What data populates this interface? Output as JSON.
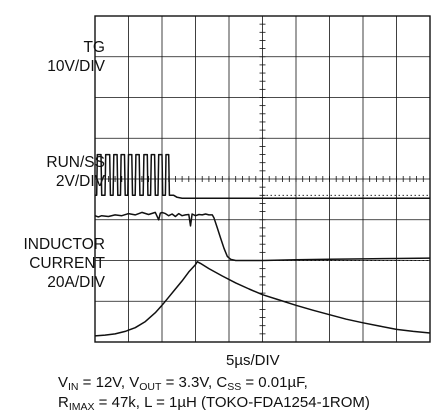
{
  "chart_data": {
    "type": "line",
    "title": "",
    "xlabel": "5µs/DIV",
    "grid": true,
    "divisions": {
      "x": 10,
      "y": 8
    },
    "channels": [
      {
        "name": "TG",
        "scale": "10V/DIV",
        "label_lines": [
          "TG",
          "10V/DIV"
        ],
        "ground_div": 3.6,
        "description": "gate switching pulses for about the first 2 divisions, then low",
        "points": [
          [
            0,
            3.6
          ],
          [
            0.05,
            3.6
          ],
          [
            0.07,
            4.6
          ],
          [
            0.18,
            4.6
          ],
          [
            0.2,
            3.6
          ],
          [
            0.3,
            3.6
          ],
          [
            0.32,
            4.6
          ],
          [
            0.44,
            4.6
          ],
          [
            0.46,
            3.6
          ],
          [
            0.54,
            3.6
          ],
          [
            0.56,
            4.6
          ],
          [
            0.66,
            4.6
          ],
          [
            0.68,
            3.6
          ],
          [
            0.76,
            3.6
          ],
          [
            0.78,
            4.6
          ],
          [
            0.88,
            4.6
          ],
          [
            0.9,
            3.6
          ],
          [
            0.98,
            3.6
          ],
          [
            1.0,
            4.6
          ],
          [
            1.1,
            4.6
          ],
          [
            1.12,
            3.6
          ],
          [
            1.2,
            3.6
          ],
          [
            1.22,
            4.6
          ],
          [
            1.32,
            4.6
          ],
          [
            1.34,
            3.6
          ],
          [
            1.44,
            3.6
          ],
          [
            1.46,
            4.6
          ],
          [
            1.56,
            4.6
          ],
          [
            1.58,
            3.6
          ],
          [
            1.66,
            3.6
          ],
          [
            1.68,
            4.6
          ],
          [
            1.78,
            4.6
          ],
          [
            1.8,
            3.6
          ],
          [
            1.88,
            3.6
          ],
          [
            1.9,
            4.6
          ],
          [
            2.0,
            4.6
          ],
          [
            2.02,
            3.6
          ],
          [
            2.1,
            3.6
          ],
          [
            2.12,
            4.6
          ],
          [
            2.2,
            4.6
          ],
          [
            2.22,
            3.6
          ],
          [
            2.35,
            3.6
          ],
          [
            2.45,
            3.55
          ],
          [
            2.6,
            3.53
          ],
          [
            10,
            3.53
          ]
        ]
      },
      {
        "name": "RUN/SS",
        "scale": "2V/DIV",
        "label_lines": [
          "RUN/SS",
          "2V/DIV"
        ],
        "ground_div": 2.0,
        "description": "held high then pulled low at about 4.5 divisions",
        "points": [
          [
            0,
            3.1
          ],
          [
            0.1,
            3.07
          ],
          [
            0.2,
            3.1
          ],
          [
            0.4,
            3.08
          ],
          [
            0.6,
            3.12
          ],
          [
            0.8,
            3.1
          ],
          [
            1.0,
            3.15
          ],
          [
            1.2,
            3.12
          ],
          [
            1.4,
            3.18
          ],
          [
            1.6,
            3.13
          ],
          [
            1.8,
            3.18
          ],
          [
            1.9,
            3.0
          ],
          [
            1.95,
            3.16
          ],
          [
            2.0,
            3.18
          ],
          [
            2.1,
            3.15
          ],
          [
            2.2,
            3.1
          ],
          [
            2.3,
            3.14
          ],
          [
            2.4,
            3.08
          ],
          [
            2.5,
            3.15
          ],
          [
            2.6,
            3.1
          ],
          [
            2.7,
            3.12
          ],
          [
            2.8,
            3.13
          ],
          [
            2.85,
            2.85
          ],
          [
            2.9,
            3.14
          ],
          [
            3.0,
            3.1
          ],
          [
            3.1,
            3.13
          ],
          [
            3.2,
            3.12
          ],
          [
            3.3,
            3.14
          ],
          [
            3.4,
            3.12
          ],
          [
            3.5,
            3.12
          ],
          [
            3.55,
            3.05
          ],
          [
            3.65,
            2.8
          ],
          [
            3.75,
            2.55
          ],
          [
            3.85,
            2.3
          ],
          [
            3.95,
            2.1
          ],
          [
            4.05,
            2.03
          ],
          [
            4.2,
            2.0
          ],
          [
            5,
            2.0
          ],
          [
            6,
            2.02
          ],
          [
            7,
            2.03
          ],
          [
            8,
            2.04
          ],
          [
            9,
            2.05
          ],
          [
            10,
            2.06
          ]
        ]
      },
      {
        "name": "INDUCTOR CURRENT",
        "scale": "20A/DIV",
        "label_lines": [
          "INDUCTOR",
          "CURRENT",
          "20A/DIV"
        ],
        "ground_div": 0,
        "description": "ramps up to a peak near 3.1 divisions, then decays",
        "points": [
          [
            0,
            0.15
          ],
          [
            0.3,
            0.17
          ],
          [
            0.6,
            0.2
          ],
          [
            0.9,
            0.26
          ],
          [
            1.2,
            0.35
          ],
          [
            1.5,
            0.5
          ],
          [
            1.8,
            0.72
          ],
          [
            2.0,
            0.9
          ],
          [
            2.2,
            1.1
          ],
          [
            2.4,
            1.3
          ],
          [
            2.6,
            1.5
          ],
          [
            2.8,
            1.72
          ],
          [
            3.0,
            1.9
          ],
          [
            3.05,
            1.97
          ],
          [
            3.15,
            1.93
          ],
          [
            3.4,
            1.8
          ],
          [
            3.8,
            1.62
          ],
          [
            4.2,
            1.45
          ],
          [
            4.6,
            1.3
          ],
          [
            5.0,
            1.16
          ],
          [
            5.5,
            1.03
          ],
          [
            6.0,
            0.9
          ],
          [
            6.5,
            0.78
          ],
          [
            7.0,
            0.67
          ],
          [
            7.5,
            0.56
          ],
          [
            8.0,
            0.47
          ],
          [
            8.5,
            0.39
          ],
          [
            9.0,
            0.31
          ],
          [
            9.5,
            0.26
          ],
          [
            10,
            0.22
          ]
        ]
      }
    ]
  },
  "caption": {
    "line1": {
      "v1": "V",
      "s1": "IN",
      "t1": " = 12V, V",
      "s2": "OUT",
      "t2": " = 3.3V, C",
      "s3": "SS",
      "t3": " = 0.01µF,"
    },
    "line2": {
      "r": "R",
      "s1": "IMAX",
      "t1": " = 47k, L = 1µH (TOKO-FDA1254-1ROM)"
    }
  }
}
